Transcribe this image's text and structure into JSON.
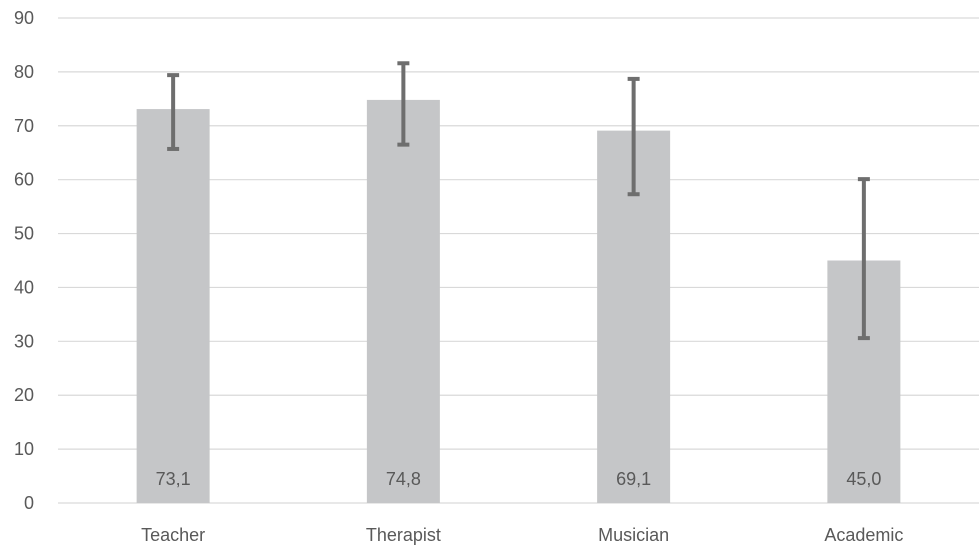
{
  "chart_data": {
    "type": "bar",
    "categories": [
      "Teacher",
      "Therapist",
      "Musician",
      "Academic"
    ],
    "values": [
      73.1,
      74.8,
      69.1,
      45.0
    ],
    "value_labels": [
      "73,1",
      "74,8",
      "69,1",
      "45,0"
    ],
    "error_low": [
      65.7,
      66.5,
      57.3,
      30.6
    ],
    "error_high": [
      79.4,
      81.6,
      78.7,
      60.1
    ],
    "ylim": [
      0,
      90
    ],
    "yticks": [
      0,
      10,
      20,
      30,
      40,
      50,
      60,
      70,
      80,
      90
    ],
    "title": "",
    "xlabel": "",
    "ylabel": "",
    "grid": true,
    "legend": "none",
    "colors": {
      "bar": "#c5c6c8",
      "error_bar": "#6e6e6e",
      "grid": "#d9d9d9",
      "text": "#595959"
    }
  }
}
